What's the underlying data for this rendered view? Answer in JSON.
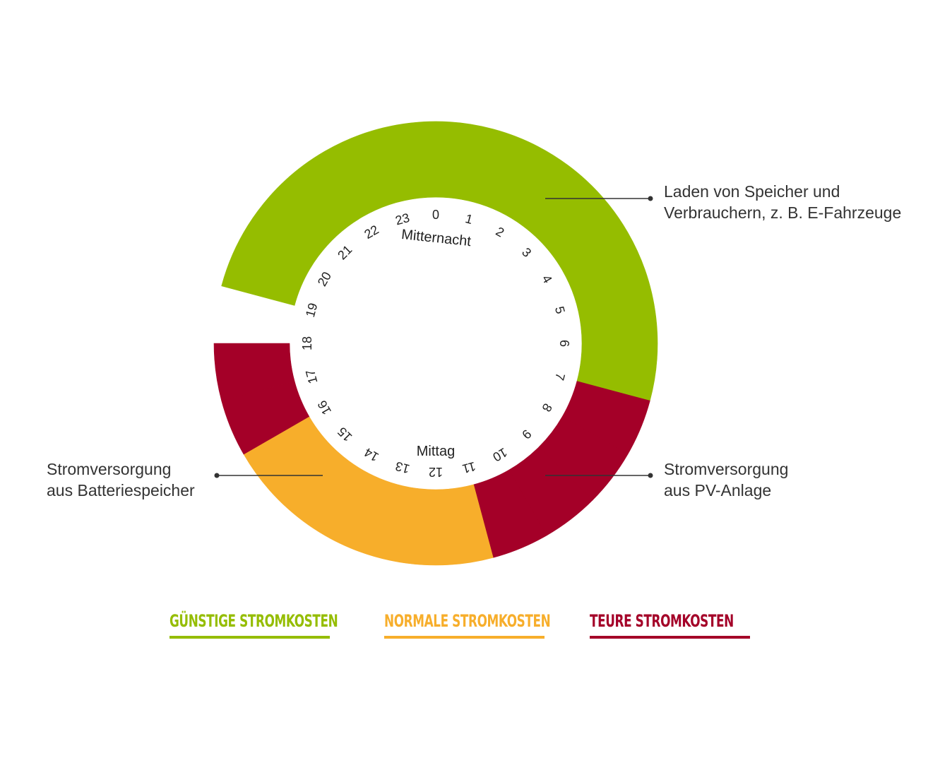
{
  "colors": {
    "green": "#95BD00",
    "orange": "#F7AE2B",
    "red": "#A40028",
    "text": "#333333",
    "hour_text": "#222222"
  },
  "clock": {
    "hours": [
      "0",
      "1",
      "2",
      "3",
      "4",
      "5",
      "6",
      "7",
      "8",
      "9",
      "10",
      "11",
      "12",
      "13",
      "14",
      "15",
      "16",
      "17",
      "18",
      "19",
      "20",
      "21",
      "22",
      "23"
    ],
    "top_label": "Mitternacht",
    "bottom_label": "Mittag"
  },
  "ring_segments": [
    {
      "from_hour": 19,
      "to_hour": 7,
      "category": "green"
    },
    {
      "from_hour": 7,
      "to_hour": 8,
      "category": "red"
    },
    {
      "from_hour": 8,
      "to_hour": 9,
      "category": "red"
    },
    {
      "from_hour": 9,
      "to_hour": 10,
      "category": "red"
    },
    {
      "from_hour": 10,
      "to_hour": 11,
      "category": "red"
    },
    {
      "from_hour": 11,
      "to_hour": 16,
      "category": "orange"
    },
    {
      "from_hour": 16,
      "to_hour": 17,
      "category": "red"
    },
    {
      "from_hour": 17,
      "to_hour": 18,
      "category": "red"
    }
  ],
  "annotations": {
    "charging": {
      "line1": "Laden von Speicher und",
      "line2": "Verbrauchern, z. B. E-Fahrzeuge"
    },
    "battery": {
      "line1": "Stromversorgung",
      "line2": "aus Batteriespeicher"
    },
    "pv": {
      "line1": "Stromversorgung",
      "line2": "aus PV-Anlage"
    }
  },
  "legend": {
    "cheap": "GÜNSTIGE STROMKOSTEN",
    "normal": "NORMALE STROMKOSTEN",
    "expensive": "TEURE STROMKOSTEN"
  }
}
